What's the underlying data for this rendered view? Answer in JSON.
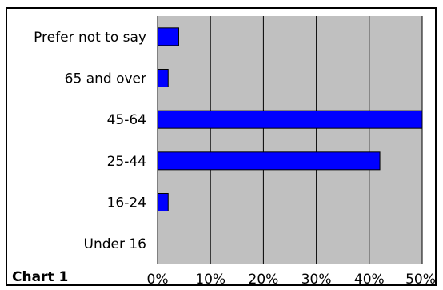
{
  "caption": "Chart 1",
  "chart_data": {
    "type": "bar",
    "orientation": "horizontal",
    "title": "",
    "xlabel": "",
    "ylabel": "",
    "categories": [
      "Under 16",
      "16-24",
      "25-44",
      "45-64",
      "65 and over",
      "Prefer not to say"
    ],
    "values": [
      0,
      2,
      42,
      50,
      2,
      4
    ],
    "xlim": [
      0,
      50
    ],
    "xticks": [
      "0%",
      "10%",
      "20%",
      "30%",
      "40%",
      "50%"
    ],
    "grid": true,
    "legend": "none",
    "colors": {
      "bar": "#0000ff",
      "bar_edge": "#000000",
      "plot_bg": "#c0c0c0",
      "grid": "#000000"
    }
  }
}
